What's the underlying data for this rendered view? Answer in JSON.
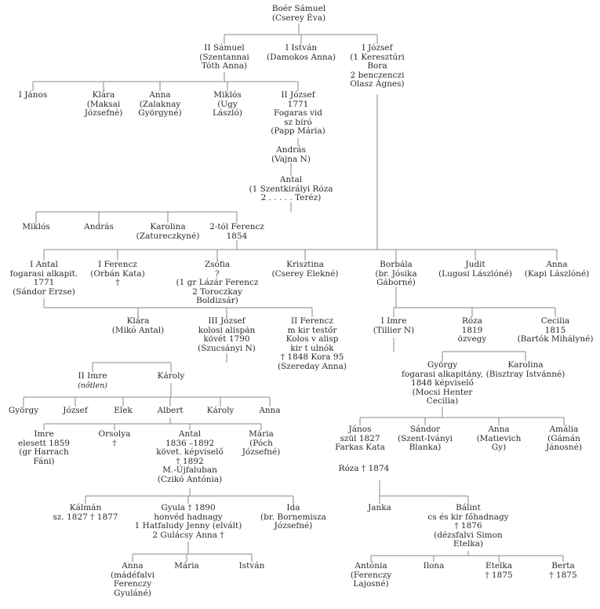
{
  "nodes": [
    {
      "id": "samuel_root",
      "lines": [
        "Boér Sámuel",
        "(Cserey Éva)"
      ]
    },
    {
      "id": "samuel2",
      "lines": [
        "II Sámuel",
        "(Szentannai",
        "Tóth Anna)"
      ]
    },
    {
      "id": "istvan1",
      "lines": [
        "I István",
        "(Damokos Anna)"
      ]
    },
    {
      "id": "jozsef1",
      "lines": [
        "I József",
        "(1 Keresztúri",
        "Bora",
        "2 benczenczi",
        "Olasz Ágnes)"
      ]
    },
    {
      "id": "janos1",
      "lines": [
        "I János"
      ]
    },
    {
      "id": "klara1",
      "lines": [
        "Klára",
        "(Maksai",
        "Józsefné)"
      ]
    },
    {
      "id": "anna1",
      "lines": [
        "Anna",
        "(Zalaknay",
        "Györgyné)"
      ]
    },
    {
      "id": "miklos1",
      "lines": [
        "Miklós",
        "(Ugy",
        "László)"
      ]
    },
    {
      "id": "jozsef2",
      "lines": [
        "II József",
        "1771",
        "Fogaras vid",
        "sz bíró",
        "(Papp Mária)"
      ]
    },
    {
      "id": "andras1",
      "lines": [
        "András",
        "(Vajna N)"
      ]
    },
    {
      "id": "antal1",
      "lines": [
        "Antal",
        "(1 Szentkirályi Róza",
        "2 . . . . . Teréz)"
      ]
    },
    {
      "id": "miklos2",
      "lines": [
        "Miklós"
      ]
    },
    {
      "id": "andras2",
      "lines": [
        "András"
      ]
    },
    {
      "id": "karolina1",
      "lines": [
        "Karolina",
        "(Zatureczkyné)"
      ]
    },
    {
      "id": "ferencz_2tol",
      "lines": [
        "2-tól Ferencz",
        "1854"
      ]
    },
    {
      "id": "antal_i",
      "lines": [
        "I Antal",
        "fogarasi alkapit.",
        "1771",
        "(Sándor Erzse)"
      ]
    },
    {
      "id": "ferencz_i",
      "lines": [
        "I Ferencz",
        "(Orbán Kata)",
        "†"
      ]
    },
    {
      "id": "zsofia",
      "lines": [
        "Zsófia",
        "?",
        "(1 gr Lázár Ferencz",
        "2 Toroczkay",
        "Boldizsár)"
      ]
    },
    {
      "id": "krisztina",
      "lines": [
        "Krisztina",
        "(Cserey Elekné)"
      ]
    },
    {
      "id": "borbala",
      "lines": [
        "Borbála",
        "(br. Jósika",
        "Gáborné)"
      ]
    },
    {
      "id": "judit",
      "lines": [
        "Judit",
        "(Lugosi Lászlóné)"
      ]
    },
    {
      "id": "anna_kapi",
      "lines": [
        "Anna",
        "(Kapi Lászlóné)"
      ]
    },
    {
      "id": "klara2",
      "lines": [
        "Klára",
        "(Mikó Antal)"
      ]
    },
    {
      "id": "jozsef3",
      "lines": [
        "III József",
        "kolosi alispán",
        "kövét 1790",
        "(Szucsányi N)"
      ]
    },
    {
      "id": "ferencz2",
      "lines": [
        "II Ferencz",
        "m kir testőr",
        "Kolos v alisp",
        "kir t ulnók",
        "† 1848 Kora 95",
        "(Szereday Anna)"
      ]
    },
    {
      "id": "imre1",
      "lines": [
        "I Imre",
        "(Tillier N)"
      ]
    },
    {
      "id": "roza1",
      "lines": [
        "Róza",
        "1819",
        "özvegy"
      ]
    },
    {
      "id": "cecilia1",
      "lines": [
        "Cecilia",
        "1815",
        "(Bartók Mihályné)"
      ]
    },
    {
      "id": "gyorgy1",
      "lines": [
        "György",
        "fogarasi alkapitány,",
        "1848 képviselő",
        "(Mocsi Henter",
        "Cecilia)"
      ]
    },
    {
      "id": "karolina2",
      "lines": [
        "Karolina",
        "(Bisztray Istvánné)"
      ]
    },
    {
      "id": "imre2",
      "lines": [
        "II Imre",
        "(nőtlen)"
      ]
    },
    {
      "id": "karoly1",
      "lines": [
        "Károly"
      ]
    },
    {
      "id": "gyorgy2",
      "lines": [
        "György"
      ]
    },
    {
      "id": "jozsef4",
      "lines": [
        "József"
      ]
    },
    {
      "id": "elek",
      "lines": [
        "Elek"
      ]
    },
    {
      "id": "albert",
      "lines": [
        "Albert"
      ]
    },
    {
      "id": "karoly2",
      "lines": [
        "Károly"
      ]
    },
    {
      "id": "anna2",
      "lines": [
        "Anna"
      ]
    },
    {
      "id": "imre3",
      "lines": [
        "Imre",
        "elesett 1859",
        "(gr Harrach",
        "Fáni)"
      ]
    },
    {
      "id": "orsolya",
      "lines": [
        "Orsolya",
        "†"
      ]
    },
    {
      "id": "antal2",
      "lines": [
        "Antal",
        "1836 –1892",
        "követ. képviselő",
        "† 1892",
        "M.-Újfaluban",
        "(Czikó Antónia)"
      ]
    },
    {
      "id": "maria1",
      "lines": [
        "Mária",
        "(Póch",
        "Józsefné)"
      ]
    },
    {
      "id": "janos2",
      "lines": [
        "János",
        "szül 1827",
        "Farkas Kata"
      ]
    },
    {
      "id": "roza2",
      "lines": [
        "Róza † 1874"
      ]
    },
    {
      "id": "sandor",
      "lines": [
        "Sándor",
        "(Szent-Iványi",
        "Blanka)"
      ]
    },
    {
      "id": "anna3",
      "lines": [
        "Anna",
        "(Matievich",
        "Gy)"
      ]
    },
    {
      "id": "amalia",
      "lines": [
        "Amália",
        "(Gámán",
        "Jánosné)"
      ]
    },
    {
      "id": "kalman",
      "lines": [
        "Kálmán",
        "sz. 1827 † 1877"
      ]
    },
    {
      "id": "gyula",
      "lines": [
        "Gyula † 1890",
        "honvéd hadnagy",
        "1 Hatfaludy Jenny (elvált)",
        "2 Gulácsy Anna †"
      ]
    },
    {
      "id": "ida",
      "lines": [
        "Ida",
        "(br. Bornemisza",
        "Józsefné)"
      ]
    },
    {
      "id": "janka",
      "lines": [
        "Janka"
      ]
    },
    {
      "id": "balint",
      "lines": [
        "Bálint",
        "cs és kir főhadnagy",
        "† 1876",
        "(dézsfalvi Simon",
        "Etelka)"
      ]
    },
    {
      "id": "anna4",
      "lines": [
        "Anna",
        "(mádéfalvi",
        "Ferenczy",
        "Gyuláné)"
      ]
    },
    {
      "id": "maria2",
      "lines": [
        "Mária"
      ]
    },
    {
      "id": "istvan2",
      "lines": [
        "István"
      ]
    },
    {
      "id": "antonia",
      "lines": [
        "Antónia",
        "(Ferenczy",
        "Lajosné)"
      ]
    },
    {
      "id": "ilona",
      "lines": [
        "Ilona"
      ]
    },
    {
      "id": "etelka",
      "lines": [
        "Etelka",
        "† 1875"
      ]
    },
    {
      "id": "berta",
      "lines": [
        "Berta",
        "† 1875"
      ]
    }
  ]
}
